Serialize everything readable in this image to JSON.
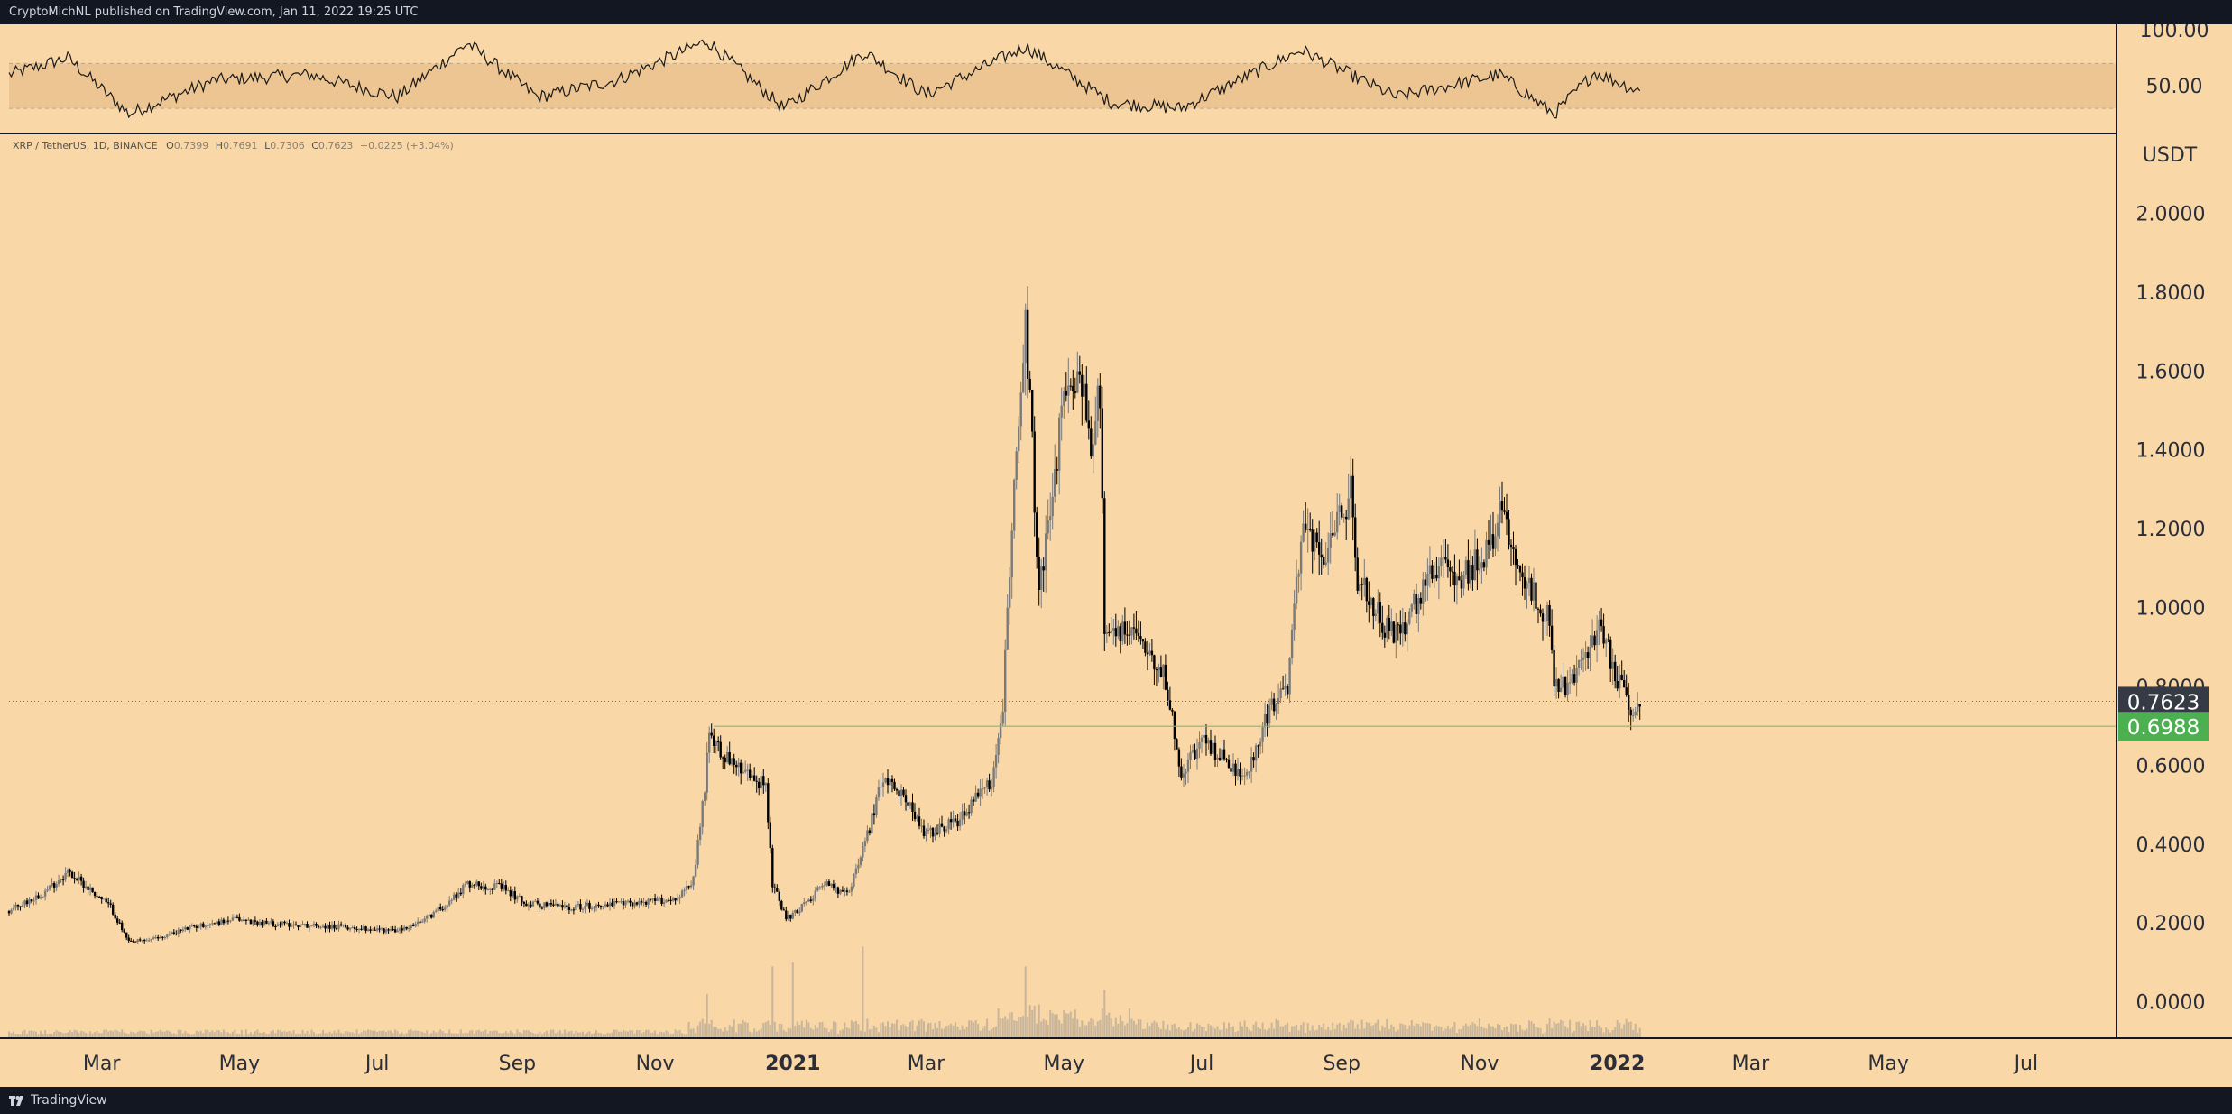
{
  "header": {
    "publish_line": "CryptoMichNL published on TradingView.com, Jan 11, 2022 19:25 UTC"
  },
  "footer": {
    "brand": "TradingView",
    "logo_icon": "tradingview-logo-icon"
  },
  "colors": {
    "frame": "#131722",
    "background": "#f9d7a6",
    "rsi_band": "#edc592",
    "candle": "#000000",
    "volume": "#c8b59a",
    "support_line": "#7fb97f",
    "support_label": "#4caf50",
    "last_price_label": "#363a45"
  },
  "legend": {
    "symbol": "XRP / TetherUS, 1D, BINANCE",
    "open_label": "O",
    "open": "0.7399",
    "high_label": "H",
    "high": "0.7691",
    "low_label": "L",
    "low": "0.7306",
    "close_label": "C",
    "close": "0.7623",
    "change": "+0.0225 (+3.04%)"
  },
  "chart_data": {
    "type": "candlestick",
    "symbol": "XRP / TetherUS",
    "interval": "1D",
    "exchange": "BINANCE",
    "currency_label": "USDT",
    "y_ticks": [
      "2.0000",
      "1.8000",
      "1.6000",
      "1.4000",
      "1.2000",
      "1.0000",
      "0.8000",
      "0.6000",
      "0.4000",
      "0.2000",
      "0.0000"
    ],
    "ylim": [
      -0.09,
      2.2
    ],
    "x_ticks": [
      {
        "label": "Mar",
        "date": "2020-03-01"
      },
      {
        "label": "May",
        "date": "2020-05-01"
      },
      {
        "label": "Jul",
        "date": "2020-07-01"
      },
      {
        "label": "Sep",
        "date": "2020-09-01"
      },
      {
        "label": "Nov",
        "date": "2020-11-01"
      },
      {
        "label": "2021",
        "date": "2021-01-01",
        "bold": true
      },
      {
        "label": "Mar",
        "date": "2021-03-01"
      },
      {
        "label": "May",
        "date": "2021-05-01"
      },
      {
        "label": "Jul",
        "date": "2021-07-01"
      },
      {
        "label": "Sep",
        "date": "2021-09-01"
      },
      {
        "label": "Nov",
        "date": "2021-11-01"
      },
      {
        "label": "2022",
        "date": "2022-01-01",
        "bold": true
      },
      {
        "label": "Mar",
        "date": "2022-03-01"
      },
      {
        "label": "May",
        "date": "2022-05-01"
      },
      {
        "label": "Jul",
        "date": "2022-07-01"
      }
    ],
    "xlim": [
      "2020-01-20",
      "2022-08-10"
    ],
    "price_path": [
      [
        "2020-01-20",
        0.23
      ],
      [
        "2020-02-05",
        0.28
      ],
      [
        "2020-02-15",
        0.33
      ],
      [
        "2020-02-24",
        0.29
      ],
      [
        "2020-03-05",
        0.24
      ],
      [
        "2020-03-13",
        0.15
      ],
      [
        "2020-03-25",
        0.16
      ],
      [
        "2020-04-10",
        0.19
      ],
      [
        "2020-04-30",
        0.21
      ],
      [
        "2020-05-10",
        0.2
      ],
      [
        "2020-06-15",
        0.19
      ],
      [
        "2020-07-10",
        0.18
      ],
      [
        "2020-07-20",
        0.2
      ],
      [
        "2020-08-01",
        0.25
      ],
      [
        "2020-08-10",
        0.3
      ],
      [
        "2020-08-25",
        0.29
      ],
      [
        "2020-09-05",
        0.25
      ],
      [
        "2020-09-25",
        0.24
      ],
      [
        "2020-10-20",
        0.25
      ],
      [
        "2020-11-10",
        0.26
      ],
      [
        "2020-11-18",
        0.31
      ],
      [
        "2020-11-23",
        0.55
      ],
      [
        "2020-11-25",
        0.68
      ],
      [
        "2020-12-01",
        0.63
      ],
      [
        "2020-12-10",
        0.58
      ],
      [
        "2020-12-20",
        0.55
      ],
      [
        "2020-12-23",
        0.3
      ],
      [
        "2020-12-29",
        0.21
      ],
      [
        "2021-01-05",
        0.24
      ],
      [
        "2021-01-15",
        0.3
      ],
      [
        "2021-01-25",
        0.27
      ],
      [
        "2021-01-30",
        0.35
      ],
      [
        "2021-02-02",
        0.4
      ],
      [
        "2021-02-10",
        0.57
      ],
      [
        "2021-02-20",
        0.52
      ],
      [
        "2021-02-28",
        0.42
      ],
      [
        "2021-03-15",
        0.46
      ],
      [
        "2021-03-30",
        0.56
      ],
      [
        "2021-04-04",
        0.75
      ],
      [
        "2021-04-06",
        0.98
      ],
      [
        "2021-04-10",
        1.38
      ],
      [
        "2021-04-14",
        1.75
      ],
      [
        "2021-04-20",
        1.05
      ],
      [
        "2021-04-26",
        1.3
      ],
      [
        "2021-05-01",
        1.52
      ],
      [
        "2021-05-08",
        1.6
      ],
      [
        "2021-05-13",
        1.4
      ],
      [
        "2021-05-17",
        1.55
      ],
      [
        "2021-05-19",
        0.95
      ],
      [
        "2021-05-25",
        0.93
      ],
      [
        "2021-06-01",
        0.95
      ],
      [
        "2021-06-15",
        0.82
      ],
      [
        "2021-06-22",
        0.58
      ],
      [
        "2021-07-01",
        0.66
      ],
      [
        "2021-07-15",
        0.6
      ],
      [
        "2021-07-20",
        0.56
      ],
      [
        "2021-07-30",
        0.73
      ],
      [
        "2021-08-08",
        0.8
      ],
      [
        "2021-08-15",
        1.23
      ],
      [
        "2021-08-24",
        1.1
      ],
      [
        "2021-09-05",
        1.3
      ],
      [
        "2021-09-08",
        1.08
      ],
      [
        "2021-09-20",
        0.95
      ],
      [
        "2021-09-28",
        0.93
      ],
      [
        "2021-10-10",
        1.1
      ],
      [
        "2021-10-25",
        1.08
      ],
      [
        "2021-11-05",
        1.15
      ],
      [
        "2021-11-10",
        1.25
      ],
      [
        "2021-11-20",
        1.08
      ],
      [
        "2021-12-01",
        0.98
      ],
      [
        "2021-12-04",
        0.82
      ],
      [
        "2021-12-10",
        0.8
      ],
      [
        "2021-12-20",
        0.9
      ],
      [
        "2021-12-25",
        0.95
      ],
      [
        "2021-12-31",
        0.83
      ],
      [
        "2022-01-08",
        0.74
      ],
      [
        "2022-01-11",
        0.7623
      ]
    ],
    "volume_spikes": [
      [
        "2020-11-24",
        0.11
      ],
      [
        "2020-12-23",
        0.18
      ],
      [
        "2021-01-01",
        0.19
      ],
      [
        "2021-02-01",
        0.23
      ],
      [
        "2021-04-14",
        0.18
      ],
      [
        "2021-05-19",
        0.12
      ],
      [
        "2021-12-04",
        0.04
      ]
    ],
    "last_price": {
      "value": 0.7623,
      "label": "0.7623"
    },
    "horizontal_levels": [
      {
        "value": 0.6988,
        "label": "0.6988",
        "start": "2020-11-27"
      }
    ],
    "rsi": {
      "y_ticks": [
        "100.00",
        "50.00"
      ],
      "ylim": [
        10,
        100
      ],
      "band": [
        30,
        70
      ],
      "path": [
        [
          "2020-01-20",
          60
        ],
        [
          "2020-02-15",
          75
        ],
        [
          "2020-03-13",
          25
        ],
        [
          "2020-04-20",
          55
        ],
        [
          "2020-06-01",
          60
        ],
        [
          "2020-07-10",
          40
        ],
        [
          "2020-08-10",
          88
        ],
        [
          "2020-09-10",
          40
        ],
        [
          "2020-10-15",
          55
        ],
        [
          "2020-11-24",
          90
        ],
        [
          "2020-12-28",
          30
        ],
        [
          "2021-02-02",
          80
        ],
        [
          "2021-03-01",
          42
        ],
        [
          "2021-04-14",
          85
        ],
        [
          "2021-05-22",
          35
        ],
        [
          "2021-06-22",
          30
        ],
        [
          "2021-08-14",
          82
        ],
        [
          "2021-09-25",
          40
        ],
        [
          "2021-11-10",
          60
        ],
        [
          "2021-12-04",
          25
        ],
        [
          "2021-12-22",
          62
        ],
        [
          "2022-01-11",
          45
        ]
      ]
    },
    "grid": false,
    "legend_position": "top-left"
  }
}
